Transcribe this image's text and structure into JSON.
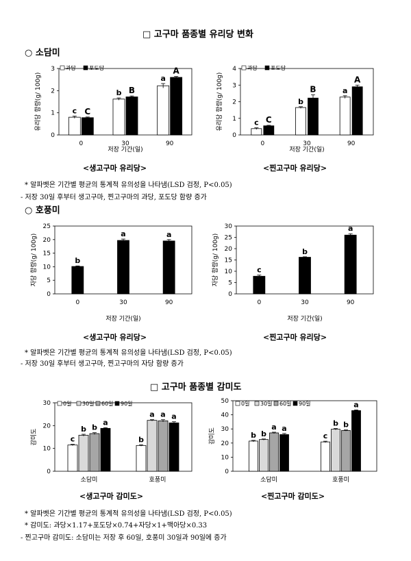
{
  "page": {
    "title1": "□ 고구마 품종별 유리당 변화",
    "section1": "○ 소담미",
    "caption1a": "<생고구마 유리당>",
    "caption1b": "<찐고구마 유리당>",
    "note1a": "* 알파벳은 기간별 평균의 통계적 유의성을 나타냄(LSD 검정, P<0.05)",
    "note1b": "- 저장 30일 후부터 생고구마, 찐고구마의 과당, 포도당 함량 증가",
    "section2": "○ 호풍미",
    "caption2a": "<생고구마 유리당>",
    "caption2b": "<찐고구마 유리당>",
    "note2a": "* 알파벳은 기간별 평균의 통계적 유의성을 나타냄(LSD 검정, P<0.05)",
    "note2b": "- 저장 30일 후부터 생고구마, 찐고구마의 자당 함량 증가",
    "title2": "□  고구마 품종별 감미도",
    "caption3a": "<생고구마 감미도>",
    "caption3b": "<찐고구마 감미도>",
    "note3a": "* 알파벳은 기간별 평균의 통계적 유의성을 나타냄(LSD 검정, P<0.05)",
    "note3b": "* 감미도: 과당×1.17+포도당×0.74+자당×1+맥아당×0.33",
    "note3c": "- 찐고구마 감미도: 소담미는 저장 후 60일, 호풍미 30일과 90일에 증가"
  },
  "chart_data": [
    {
      "type": "bar",
      "categories": [
        "0",
        "30",
        "90"
      ],
      "ylabel": "유리당 함량(g/ 100g)",
      "xlabel": "저장 기간(일)",
      "ylim": [
        0,
        3
      ],
      "yticks": [
        0,
        1,
        2,
        3
      ],
      "legend": "top-left",
      "series": [
        {
          "name": "과당",
          "color": "#ffffff",
          "values": [
            0.8,
            1.62,
            2.22
          ],
          "errors": [
            0.05,
            0.05,
            0.1
          ],
          "letters": [
            "c",
            "b",
            "a"
          ]
        },
        {
          "name": "포도당",
          "color": "#000000",
          "values": [
            0.78,
            1.72,
            2.6
          ],
          "errors": [
            0.03,
            0.04,
            0.04
          ],
          "letters": [
            "C",
            "B",
            "A"
          ]
        }
      ]
    },
    {
      "type": "bar",
      "categories": [
        "0",
        "30",
        "90"
      ],
      "ylabel": "유리당 함량(g/ 100g)",
      "xlabel": "저장 기간(일)",
      "ylim": [
        0,
        4
      ],
      "yticks": [
        0,
        1,
        2,
        3,
        4
      ],
      "legend": "top-left",
      "series": [
        {
          "name": "과당",
          "color": "#ffffff",
          "values": [
            0.38,
            1.65,
            2.28
          ],
          "errors": [
            0.05,
            0.05,
            0.08
          ],
          "letters": [
            "c",
            "b",
            "a"
          ]
        },
        {
          "name": "포도당",
          "color": "#000000",
          "values": [
            0.55,
            2.22,
            2.9
          ],
          "errors": [
            0.03,
            0.2,
            0.1
          ],
          "letters": [
            "C",
            "B",
            "A"
          ]
        }
      ]
    },
    {
      "type": "bar",
      "categories": [
        "0",
        "30",
        "90"
      ],
      "ylabel": "자당 함량(g/ 100g)",
      "xlabel": "저장 기간(일)",
      "ylim": [
        0,
        25
      ],
      "yticks": [
        0,
        5,
        10,
        15,
        20,
        25
      ],
      "series": [
        {
          "color": "#000000",
          "values": [
            10.1,
            19.7,
            19.5
          ],
          "errors": [
            0.2,
            0.5,
            0.5
          ],
          "letters": [
            "b",
            "a",
            "a"
          ]
        }
      ]
    },
    {
      "type": "bar",
      "categories": [
        "0",
        "30",
        "90"
      ],
      "ylabel": "자당 함량(g/ 100g)",
      "xlabel": "저장 기간(일)",
      "ylim": [
        0,
        30
      ],
      "yticks": [
        0,
        5,
        10,
        15,
        20,
        25,
        30
      ],
      "series": [
        {
          "color": "#000000",
          "values": [
            7.8,
            16.2,
            26.0
          ],
          "errors": [
            0.5,
            0.2,
            0.6
          ],
          "letters": [
            "c",
            "b",
            "a"
          ]
        }
      ]
    },
    {
      "type": "bar",
      "categories": [
        "소담미",
        "호풍미"
      ],
      "ylabel": "감미도",
      "ylim": [
        0,
        30
      ],
      "yticks": [
        0,
        10,
        20,
        30
      ],
      "legend": "top-left",
      "series": [
        {
          "name": "0일",
          "color": "#ffffff",
          "values": [
            11.5,
            11.3
          ],
          "errors": [
            0.3,
            0.3
          ],
          "letters": [
            "c",
            "b"
          ]
        },
        {
          "name": "30일",
          "color": "#d9d9d9",
          "values": [
            15.8,
            22.3
          ],
          "errors": [
            0.4,
            0.3
          ],
          "letters": [
            "b",
            "a"
          ]
        },
        {
          "name": "60일",
          "color": "#a6a6a6",
          "values": [
            16.5,
            22.1
          ],
          "errors": [
            0.4,
            0.5
          ],
          "letters": [
            "b",
            "a"
          ]
        },
        {
          "name": "90일",
          "color": "#000000",
          "values": [
            18.8,
            21.2
          ],
          "errors": [
            0.3,
            0.5
          ],
          "letters": [
            "a",
            "a"
          ]
        }
      ]
    },
    {
      "type": "bar",
      "categories": [
        "소담미",
        "호풍미"
      ],
      "ylabel": "감미도",
      "ylim": [
        0,
        50
      ],
      "yticks": [
        0,
        10,
        20,
        30,
        40,
        50
      ],
      "legend": "top-left",
      "series": [
        {
          "name": "0일",
          "color": "#ffffff",
          "values": [
            21.4,
            20.8
          ],
          "errors": [
            0.5,
            0.5
          ],
          "letters": [
            "b",
            "c"
          ]
        },
        {
          "name": "30일",
          "color": "#d9d9d9",
          "values": [
            22.5,
            29.8
          ],
          "errors": [
            0.4,
            0.5
          ],
          "letters": [
            "b",
            "b"
          ]
        },
        {
          "name": "60일",
          "color": "#a6a6a6",
          "values": [
            27.2,
            28.9
          ],
          "errors": [
            0.5,
            0.4
          ],
          "letters": [
            "a",
            "b"
          ]
        },
        {
          "name": "90일",
          "color": "#000000",
          "values": [
            26.0,
            43.0
          ],
          "errors": [
            0.8,
            0.5
          ],
          "letters": [
            "a",
            "a"
          ]
        }
      ]
    }
  ]
}
